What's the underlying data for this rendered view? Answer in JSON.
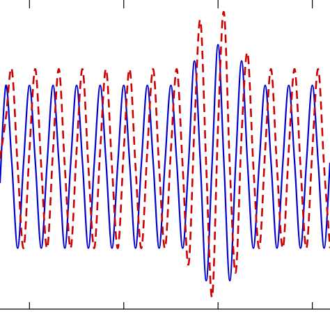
{
  "chart_data": {
    "type": "line",
    "title": "",
    "xlabel": "",
    "ylabel": "",
    "grid": false,
    "legend": "none",
    "x_range": [
      0,
      28
    ],
    "y_range": [
      -1.75,
      2.05
    ],
    "series": [
      {
        "style": "solid",
        "color": "#0000cc",
        "x": [
          0.0,
          0.5,
          1.0,
          1.5,
          2.0,
          2.5,
          3.0,
          3.5,
          4.0,
          4.5,
          5.0,
          5.5,
          6.0,
          6.5,
          7.0,
          7.5,
          8.0,
          8.5,
          9.0,
          9.5,
          10.0,
          10.5,
          11.0,
          11.5,
          12.0,
          12.5,
          13.0,
          13.5,
          14.0,
          14.5,
          15.0,
          15.5,
          16.0,
          16.5,
          17.0,
          17.5,
          18.0,
          18.5,
          19.0,
          19.5,
          20.0,
          20.5,
          21.0,
          21.5,
          22.0,
          22.5,
          23.0,
          23.5,
          24.0,
          24.5,
          25.0,
          25.5,
          26.0,
          26.5,
          27.0,
          27.5,
          28.0
        ],
        "y": [
          -0.2,
          1.0,
          0.05,
          -1.0,
          0.05,
          1.0,
          0.05,
          -1.0,
          0.05,
          1.0,
          0.05,
          -1.0,
          0.05,
          1.0,
          0.05,
          -1.0,
          0.05,
          1.0,
          0.05,
          -1.0,
          0.05,
          1.0,
          0.05,
          -1.0,
          0.05,
          1.0,
          0.05,
          -1.0,
          0.05,
          1.0,
          0.05,
          -1.0,
          0.05,
          1.3,
          0.05,
          -1.4,
          0.05,
          1.5,
          0.05,
          -1.4,
          0.05,
          1.3,
          0.05,
          -1.0,
          0.05,
          1.0,
          0.05,
          -1.0,
          0.05,
          1.0,
          0.05,
          -1.0,
          0.05,
          1.0,
          0.05,
          -1.0,
          0.05
        ]
      },
      {
        "style": "dashed",
        "color": "#cc0000",
        "x": [
          0.0,
          0.5,
          1.0,
          1.5,
          2.0,
          2.5,
          3.0,
          3.5,
          4.0,
          4.5,
          5.0,
          5.5,
          6.0,
          6.5,
          7.0,
          7.5,
          8.0,
          8.5,
          9.0,
          9.5,
          10.0,
          10.5,
          11.0,
          11.5,
          12.0,
          12.5,
          13.0,
          13.5,
          14.0,
          14.5,
          15.0,
          15.5,
          16.0,
          16.5,
          17.0,
          17.5,
          18.0,
          18.5,
          19.0,
          19.5,
          20.0,
          20.5,
          21.0,
          21.5,
          22.0,
          22.5,
          23.0,
          23.5,
          24.0,
          24.5,
          25.0,
          25.5,
          26.0,
          26.5,
          27.0,
          27.5,
          28.0
        ],
        "y": [
          0.1,
          0.6,
          1.2,
          0.0,
          -1.0,
          0.2,
          1.2,
          0.0,
          -1.0,
          0.2,
          1.2,
          0.0,
          -1.0,
          0.2,
          1.2,
          0.0,
          -1.0,
          0.2,
          1.2,
          0.0,
          -1.0,
          0.2,
          1.2,
          0.0,
          -1.0,
          0.2,
          1.2,
          0.0,
          -1.0,
          0.2,
          1.2,
          0.0,
          -1.2,
          0.5,
          1.8,
          0.0,
          -1.6,
          0.5,
          1.9,
          0.0,
          -1.3,
          0.4,
          1.4,
          0.0,
          -1.0,
          0.2,
          1.2,
          0.0,
          -1.0,
          0.2,
          1.2,
          0.0,
          -1.0,
          0.2,
          1.2,
          0.0,
          -1.0
        ]
      }
    ],
    "x_ticks": [
      2.5,
      10.5,
      18.5,
      26.5
    ]
  }
}
